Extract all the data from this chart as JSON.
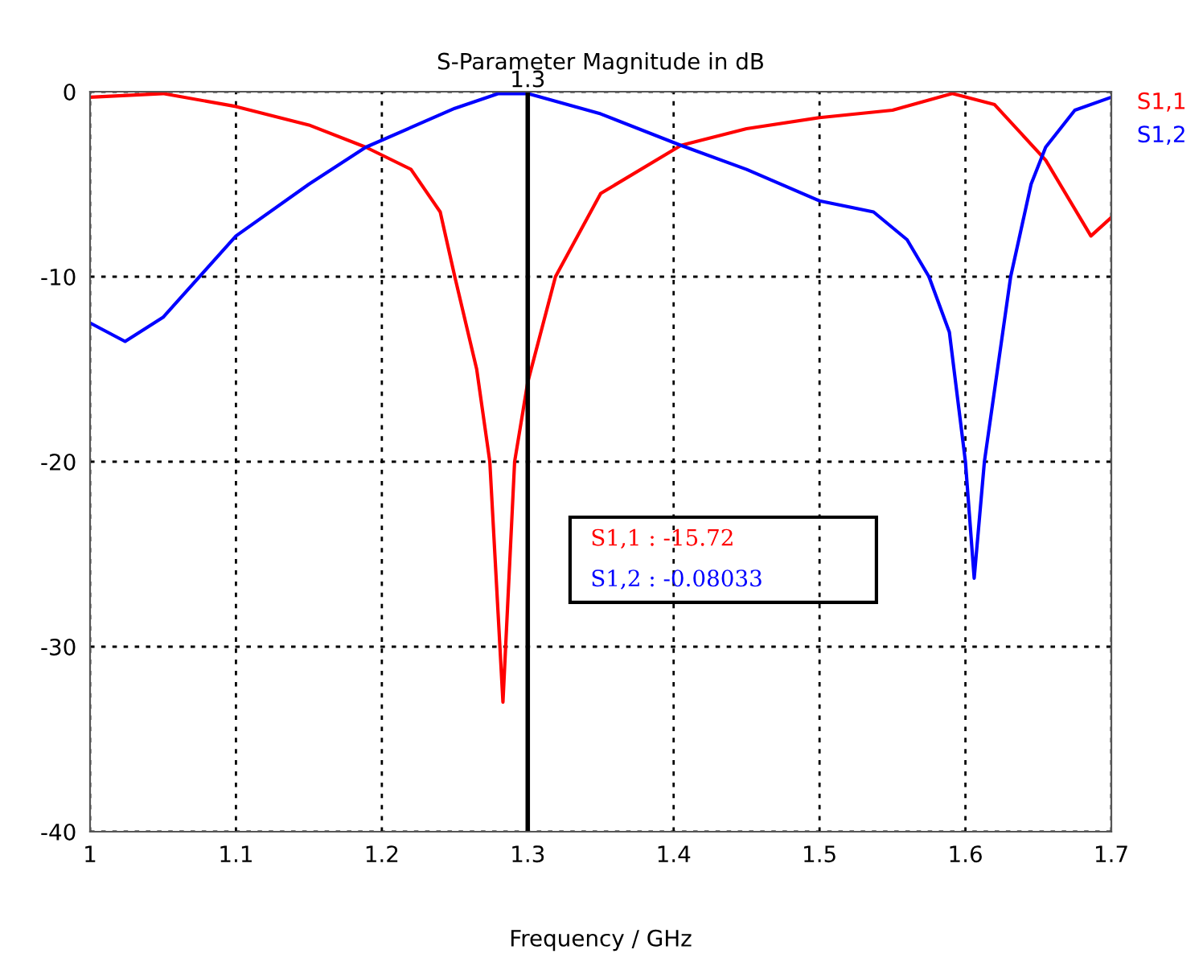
{
  "chart_data": {
    "type": "line",
    "title": "S-Parameter Magnitude in dB",
    "xlabel": "Frequency / GHz",
    "xlim": [
      1,
      1.7
    ],
    "xticks": [
      1,
      1.1,
      1.2,
      1.3,
      1.4,
      1.5,
      1.6,
      1.7
    ],
    "ylim": [
      -40,
      0
    ],
    "yticks": [
      0,
      -10,
      -20,
      -30,
      -40
    ],
    "grid": true,
    "legend": "top right",
    "line_style": "solid",
    "ref_lines": [
      {
        "axis": "x",
        "value": 1.3,
        "label": "1.3",
        "color": "#000000"
      }
    ],
    "annotations": [
      "S1,1 : -15.72",
      "S1,2 : -0.08033"
    ],
    "series": [
      {
        "name": "S1,1",
        "color": "#ff0000",
        "x": [
          1.0,
          1.05,
          1.1,
          1.15,
          1.189,
          1.22,
          1.24,
          1.25,
          1.265,
          1.274,
          1.283,
          1.291,
          1.3,
          1.319,
          1.35,
          1.405,
          1.45,
          1.5,
          1.55,
          1.591,
          1.62,
          1.655,
          1.686,
          1.7
        ],
        "values": [
          -0.3,
          -0.1,
          -0.8,
          -1.8,
          -3.0,
          -4.2,
          -6.5,
          -10,
          -15,
          -20,
          -33,
          -20,
          -15.7,
          -10,
          -5.5,
          -2.9,
          -2.0,
          -1.4,
          -1.0,
          -0.1,
          -0.7,
          -3.7,
          -7.8,
          -6.8
        ]
      },
      {
        "name": "S1,2",
        "color": "#0000ff",
        "x": [
          1.0,
          1.024,
          1.05,
          1.1,
          1.15,
          1.189,
          1.25,
          1.28,
          1.3,
          1.35,
          1.405,
          1.45,
          1.5,
          1.537,
          1.56,
          1.575,
          1.589,
          1.6,
          1.606,
          1.613,
          1.631,
          1.645,
          1.655,
          1.675,
          1.7
        ],
        "values": [
          -12.5,
          -13.5,
          -12.2,
          -7.8,
          -5.0,
          -3.0,
          -0.9,
          -0.1,
          -0.1,
          -1.2,
          -2.9,
          -4.2,
          -5.9,
          -6.5,
          -8.0,
          -10,
          -13,
          -20,
          -26.3,
          -20,
          -10,
          -5,
          -3.0,
          -1.0,
          -0.3
        ]
      }
    ]
  }
}
